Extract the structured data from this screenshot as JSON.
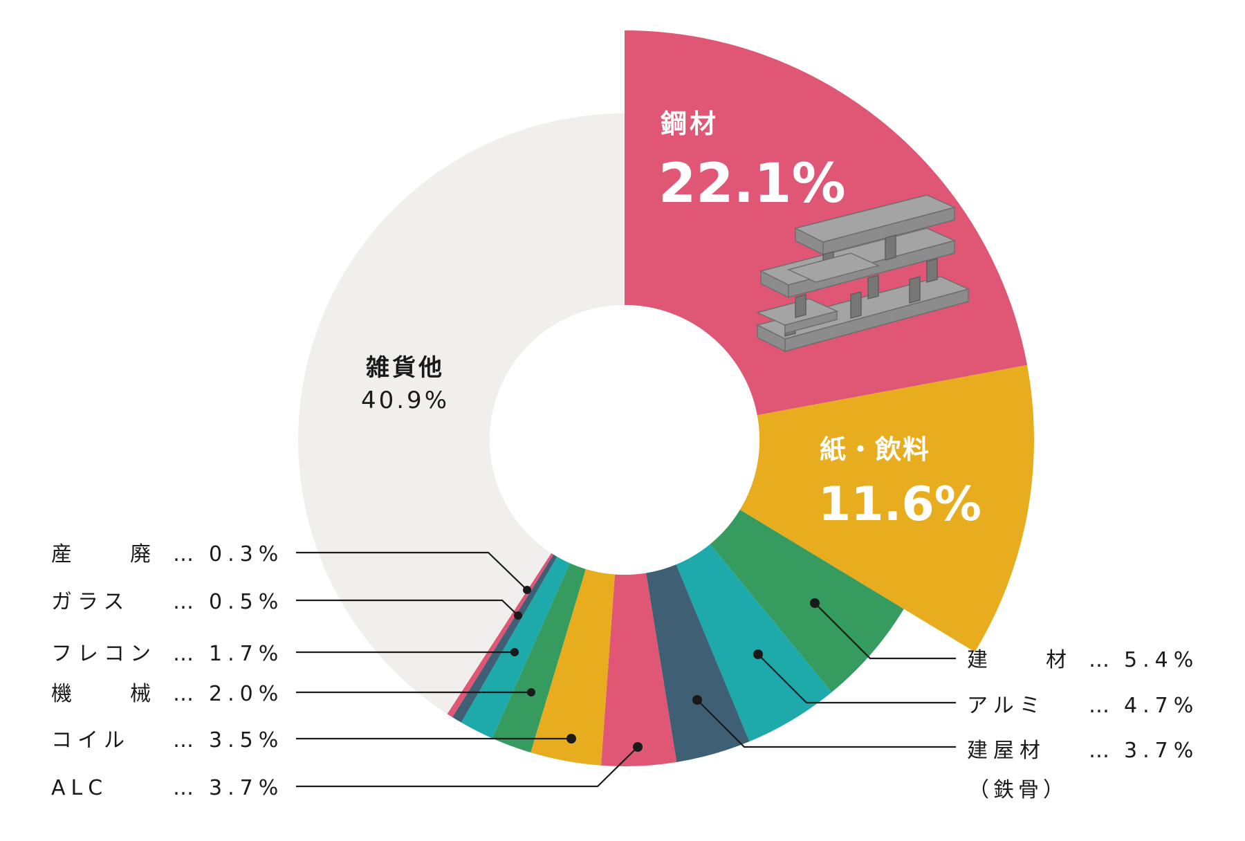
{
  "chart_data": {
    "type": "pie",
    "variant": "donut",
    "legend": "leader-lines",
    "slices": [
      {
        "label": "鋼材",
        "value": 22.1,
        "display": "22.1%",
        "color": "#e05675",
        "exploded": true
      },
      {
        "label": "紙・飲料",
        "value": 11.6,
        "display": "11.6%",
        "color": "#e7ad1f",
        "exploded": true
      },
      {
        "label": "建　　材",
        "value": 5.4,
        "display": "5.4%",
        "color": "#359b5e"
      },
      {
        "label": "アルミ",
        "value": 4.7,
        "display": "4.7%",
        "color": "#1eaaab"
      },
      {
        "label": "建屋材",
        "value": 3.7,
        "display": "3.7%",
        "color": "#3e5f74",
        "note": "（鉄骨）"
      },
      {
        "label": "ALC",
        "value": 3.7,
        "display": "3.7%",
        "color": "#e05675"
      },
      {
        "label": "コイル",
        "value": 3.5,
        "display": "3.5%",
        "color": "#e7ad1f"
      },
      {
        "label": "機　　械",
        "value": 2.0,
        "display": "2.0%",
        "color": "#359b5e"
      },
      {
        "label": "フレコン",
        "value": 1.7,
        "display": "1.7%",
        "color": "#1eaaab"
      },
      {
        "label": "ガラス",
        "value": 0.5,
        "display": "0.5%",
        "color": "#3e5f74"
      },
      {
        "label": "産　　廃",
        "value": 0.3,
        "display": "0.3%",
        "color": "#e05675"
      },
      {
        "label": "雑貨他",
        "value": 40.9,
        "display": "40.9%",
        "color": "#f0efed"
      }
    ]
  },
  "labels": {
    "steel": {
      "name": "鋼材",
      "value": "22.1%"
    },
    "paper": {
      "name": "紙・飲料",
      "value": "11.6%"
    },
    "misc": {
      "name": "雑貨他",
      "value": "40.9%"
    },
    "right": [
      {
        "name": "建　　材",
        "dots": "…",
        "value": "5.4%"
      },
      {
        "name": "アルミ",
        "dots": "…",
        "value": "4.7%"
      },
      {
        "name": "建屋材",
        "dots": "…",
        "value": "3.7%",
        "note": "（鉄骨）"
      }
    ],
    "left": [
      {
        "name": "産　　廃",
        "dots": "…",
        "value": "0.3%"
      },
      {
        "name": "ガラス",
        "dots": "…",
        "value": "0.5%"
      },
      {
        "name": "フレコン",
        "dots": "…",
        "value": "1.7%"
      },
      {
        "name": "機　　械",
        "dots": "…",
        "value": "2.0%"
      },
      {
        "name": "コイル",
        "dots": "…",
        "value": "3.5%"
      },
      {
        "name": "ALC",
        "dots": "…",
        "value": "3.7%"
      }
    ]
  },
  "illustration": {
    "name": "steel-beams-icon",
    "color": "#9a9a9a"
  }
}
